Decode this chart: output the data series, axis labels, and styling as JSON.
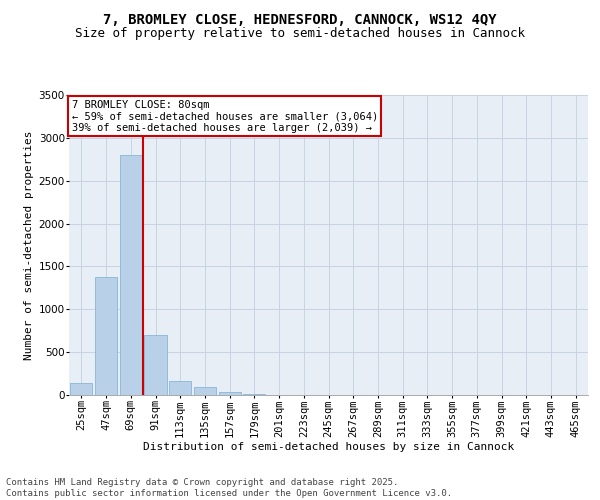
{
  "title_line1": "7, BROMLEY CLOSE, HEDNESFORD, CANNOCK, WS12 4QY",
  "title_line2": "Size of property relative to semi-detached houses in Cannock",
  "xlabel": "Distribution of semi-detached houses by size in Cannock",
  "ylabel": "Number of semi-detached properties",
  "categories": [
    "25sqm",
    "47sqm",
    "69sqm",
    "91sqm",
    "113sqm",
    "135sqm",
    "157sqm",
    "179sqm",
    "201sqm",
    "223sqm",
    "245sqm",
    "267sqm",
    "289sqm",
    "311sqm",
    "333sqm",
    "355sqm",
    "377sqm",
    "399sqm",
    "421sqm",
    "443sqm",
    "465sqm"
  ],
  "values": [
    140,
    1380,
    2800,
    700,
    160,
    90,
    35,
    15,
    0,
    0,
    0,
    0,
    0,
    0,
    0,
    0,
    0,
    0,
    0,
    0,
    0
  ],
  "bar_color": "#b8d0e8",
  "bar_edge_color": "#7aafd4",
  "property_line_x": 2.5,
  "annotation_text": "7 BROMLEY CLOSE: 80sqm\n← 59% of semi-detached houses are smaller (3,064)\n39% of semi-detached houses are larger (2,039) →",
  "annotation_box_color": "#ffffff",
  "annotation_box_edge_color": "#cc0000",
  "vline_color": "#cc0000",
  "ylim": [
    0,
    3500
  ],
  "yticks": [
    0,
    500,
    1000,
    1500,
    2000,
    2500,
    3000,
    3500
  ],
  "grid_color": "#c8d4e4",
  "bg_color": "#e8eef6",
  "footnote": "Contains HM Land Registry data © Crown copyright and database right 2025.\nContains public sector information licensed under the Open Government Licence v3.0.",
  "title_fontsize": 10,
  "subtitle_fontsize": 9,
  "axis_label_fontsize": 8,
  "tick_fontsize": 7.5,
  "annotation_fontsize": 7.5,
  "footnote_fontsize": 6.5
}
